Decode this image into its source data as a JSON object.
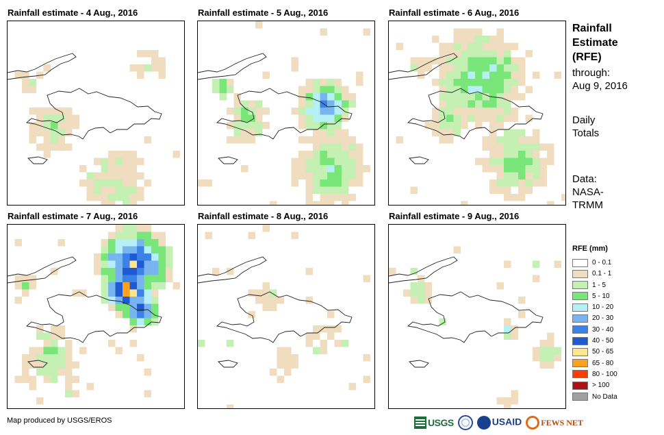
{
  "panels": [
    {
      "title": "Rainfall estimate - 4 Aug., 2016",
      "day": "4"
    },
    {
      "title": "Rainfall estimate - 5 Aug., 2016",
      "day": "5"
    },
    {
      "title": "Rainfall estimate - 6 Aug., 2016",
      "day": "6"
    },
    {
      "title": "Rainfall estimate - 7 Aug., 2016",
      "day": "7"
    },
    {
      "title": "Rainfall estimate - 8 Aug., 2016",
      "day": "8"
    },
    {
      "title": "Rainfall estimate - 9 Aug., 2016",
      "day": "9"
    }
  ],
  "sidebar": {
    "title_lines": [
      "Rainfall",
      "Estimate",
      "(RFE)"
    ],
    "through_lines": [
      "through:",
      "Aug 9, 2016"
    ],
    "totals_lines": [
      "Daily",
      "Totals"
    ],
    "data_lines": [
      "Data:",
      "NASA-",
      "TRMM"
    ]
  },
  "legend": {
    "title": "RFE (mm)",
    "items": [
      {
        "label": "0 - 0.1",
        "color": "#ffffff"
      },
      {
        "label": "0.1 - 1",
        "color": "#f0dcbe"
      },
      {
        "label": "1 - 5",
        "color": "#c4f0b4"
      },
      {
        "label": "5 - 10",
        "color": "#78e678"
      },
      {
        "label": "10 - 20",
        "color": "#b4f0f5"
      },
      {
        "label": "20 - 30",
        "color": "#78b4f0"
      },
      {
        "label": "30 - 40",
        "color": "#3c82e6"
      },
      {
        "label": "40 - 50",
        "color": "#1e5ad2"
      },
      {
        "label": "50 - 65",
        "color": "#ffe68c"
      },
      {
        "label": "65 - 80",
        "color": "#ffa01e"
      },
      {
        "label": "80 - 100",
        "color": "#ff3c00"
      },
      {
        "label": "> 100",
        "color": "#aa1414"
      },
      {
        "label": "No Data",
        "color": "#a0a0a0"
      }
    ]
  },
  "footer": {
    "credit": "Map produced by USGS/EROS",
    "logos": {
      "usgs": "USGS",
      "usaid": "USAID",
      "fews": "FEWS NET"
    }
  }
}
